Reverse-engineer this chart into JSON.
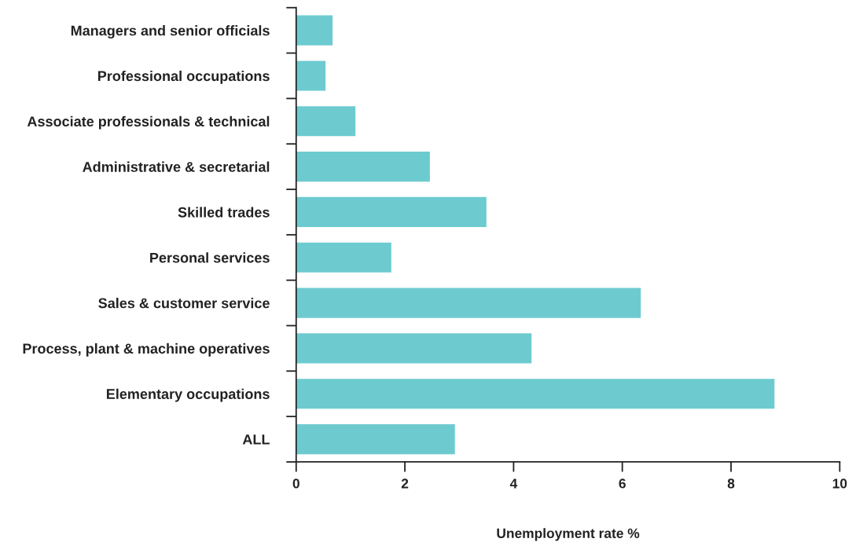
{
  "chart_data": {
    "type": "bar",
    "orientation": "horizontal",
    "xlabel": "Unemployment rate %",
    "categories": [
      "Managers and senior officials",
      "Professional occupations",
      "Associate professionals & technical",
      "Administrative & secretarial",
      "Skilled trades",
      "Personal services",
      "Sales & customer service",
      "Process, plant & machine operatives",
      "Elementary occupations",
      "ALL"
    ],
    "values": [
      0.67,
      0.54,
      1.09,
      2.46,
      3.5,
      1.75,
      6.34,
      4.33,
      8.8,
      2.92
    ],
    "color": "#6dcbd0",
    "xlim": [
      0,
      10
    ],
    "xticks": [
      0,
      2,
      4,
      6,
      8,
      10
    ],
    "grid": false,
    "legend": false
  }
}
